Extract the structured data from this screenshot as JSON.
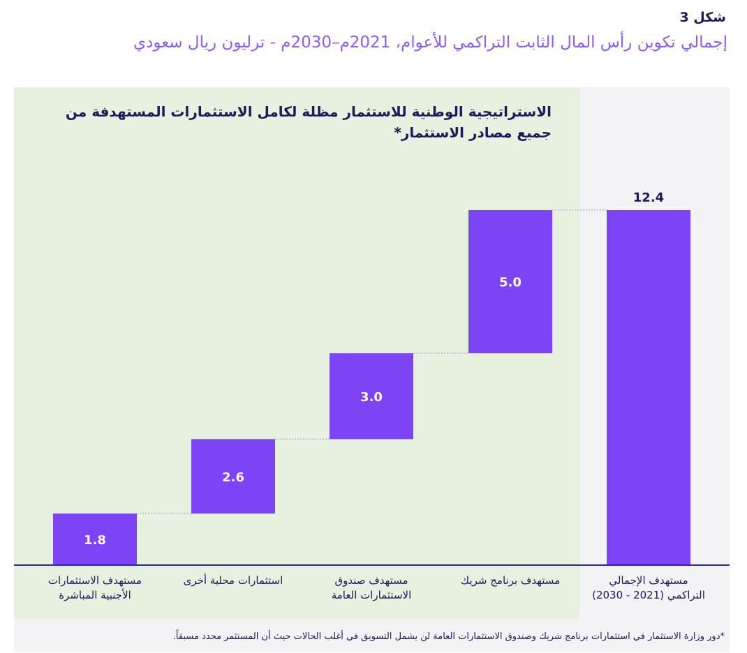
{
  "figure": {
    "label": "شكل 3",
    "title": "إجمالي تكوين رأس المال الثابت التراكمي للأعوام، 2021م–2030م - ترليون ريال سعودي"
  },
  "panel": {
    "heading": "الاستراتيجية الوطنية للاستثمار مظلة لكامل الاستثمارات المستهدفة من جميع مصادر الاستثمار*"
  },
  "footnote": "*دور وزارة الاستثمار في استثمارات برنامج شريك وصندوق الاستثمارات العامة لن يشمل التسويق في أغلب الحالات حيث أن المستثمر محدد مسبقاً.",
  "colors": {
    "bar": "#7c44f4",
    "axis": "#2a2a8a",
    "connector": "#b7a7cf",
    "green_panel": "#e6f1df",
    "grey_panel": "#f3f2f5"
  },
  "chart_data": {
    "type": "waterfall",
    "categories": [
      "مستهدف الاستثمارات الأجنبية المباشرة",
      "استثمارات محلية أخرى",
      "مستهدف صندوق الاستثمارات العامة",
      "مستهدف برنامج شريك",
      "مستهدف الإجمالي التراكمي (2021 - 2030)"
    ],
    "category_lines": [
      [
        "مستهدف الاستثمارات",
        "الأجنبية المباشرة"
      ],
      [
        "استثمارات محلية أخرى"
      ],
      [
        "مستهدف صندوق",
        "الاستثمارات العامة"
      ],
      [
        "مستهدف برنامج شريك"
      ],
      [
        "مستهدف الإجمالي",
        "التراكمي (2021 - 2030)"
      ]
    ],
    "values": [
      1.8,
      2.6,
      3.0,
      5.0,
      12.4
    ],
    "value_labels": [
      "1.8",
      "2.6",
      "3.0",
      "5.0",
      "12.4"
    ],
    "is_total": [
      false,
      false,
      false,
      false,
      true
    ],
    "ylim": [
      0,
      12.4
    ],
    "unit": "ترليون ريال سعودي",
    "grid": false
  }
}
